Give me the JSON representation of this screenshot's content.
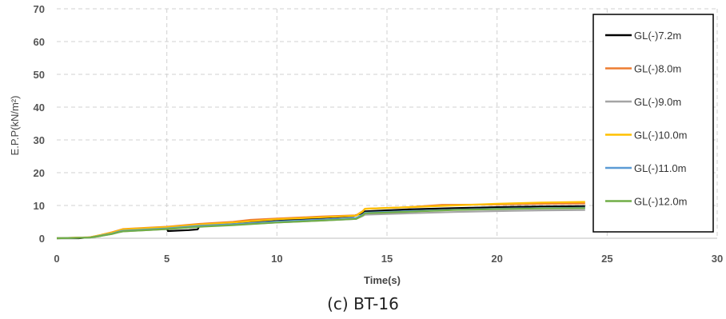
{
  "caption": "(c) BT-16",
  "chart_data": {
    "type": "line",
    "title": "",
    "xlabel": "Time(s)",
    "ylabel": "E.P.P(kN/m²)",
    "xlim": [
      0,
      30
    ],
    "ylim": [
      0,
      70
    ],
    "xticks": [
      "0",
      "5",
      "10",
      "15",
      "20",
      "25",
      "30"
    ],
    "yticks": [
      "0",
      "10",
      "20",
      "30",
      "40",
      "50",
      "60",
      "70"
    ],
    "grid": true,
    "legend_position": "right-inside",
    "series": [
      {
        "name": "GL(-)7.2m",
        "color": "#000000",
        "x": [
          0,
          1,
          1.5,
          2,
          2.5,
          2.8,
          3,
          4,
          5,
          5.05,
          6,
          6.4,
          6.5,
          8,
          10,
          12,
          13.5,
          13.8,
          14,
          16,
          18,
          20,
          22,
          24
        ],
        "y": [
          0,
          0,
          0.3,
          0.8,
          1.5,
          2.1,
          2.3,
          2.6,
          3.0,
          2.2,
          2.5,
          2.7,
          4.0,
          4.5,
          5.3,
          6.2,
          6.8,
          7.5,
          8.2,
          8.8,
          9.2,
          9.5,
          9.7,
          9.8
        ]
      },
      {
        "name": "GL(-)8.0m",
        "color": "#ED7D31",
        "x": [
          0,
          1.5,
          2,
          2.5,
          2.8,
          3,
          5,
          6.5,
          8,
          8.8,
          10,
          12,
          13.6,
          13.9,
          14,
          16,
          17.5,
          20,
          22,
          24
        ],
        "y": [
          0,
          0.3,
          1.0,
          1.8,
          2.4,
          2.8,
          3.5,
          4.4,
          5.0,
          5.6,
          6.0,
          6.6,
          7.0,
          8.3,
          9.0,
          9.5,
          10.2,
          10.3,
          10.5,
          10.6
        ]
      },
      {
        "name": "GL(-)9.0m",
        "color": "#A5A5A5",
        "x": [
          0,
          1.5,
          2,
          2.5,
          2.8,
          3,
          5,
          6.5,
          8,
          10,
          12,
          13.6,
          13.9,
          14,
          16,
          18,
          20,
          22,
          24
        ],
        "y": [
          0,
          0.2,
          0.7,
          1.3,
          1.8,
          2.1,
          2.8,
          3.6,
          4.1,
          4.8,
          5.4,
          5.9,
          6.8,
          7.2,
          7.6,
          8.0,
          8.3,
          8.5,
          8.6
        ]
      },
      {
        "name": "GL(-)10.0m",
        "color": "#FFC000",
        "x": [
          0,
          1.5,
          2,
          2.5,
          2.8,
          3,
          5,
          6.5,
          8,
          10,
          12,
          13.6,
          13.9,
          14,
          16,
          18,
          20,
          22,
          24
        ],
        "y": [
          0,
          0.3,
          1.0,
          1.7,
          2.3,
          2.7,
          3.4,
          4.2,
          4.8,
          5.8,
          6.4,
          6.9,
          8.2,
          9.0,
          9.5,
          10.0,
          10.5,
          10.9,
          11.1
        ]
      },
      {
        "name": "GL(-)11.0m",
        "color": "#5B9BD5",
        "x": [
          0,
          1.5,
          2,
          2.5,
          2.8,
          3,
          5,
          6.5,
          8,
          10,
          12,
          13.6,
          13.9,
          14,
          16,
          18,
          20,
          22,
          24
        ],
        "y": [
          0,
          0.2,
          0.8,
          1.4,
          2.0,
          2.3,
          3.0,
          3.8,
          4.3,
          5.1,
          5.7,
          6.2,
          7.2,
          7.8,
          8.3,
          8.7,
          9.0,
          9.2,
          9.3
        ]
      },
      {
        "name": "GL(-)12.0m",
        "color": "#70AD47",
        "x": [
          0,
          1.5,
          2,
          2.5,
          2.8,
          3,
          5,
          6.5,
          8,
          10,
          12,
          13.6,
          13.9,
          14,
          16,
          18,
          20,
          22,
          24
        ],
        "y": [
          0,
          0.2,
          0.7,
          1.3,
          1.8,
          2.1,
          2.8,
          3.5,
          4.0,
          4.8,
          5.4,
          5.9,
          7.0,
          7.6,
          8.1,
          8.6,
          8.9,
          9.1,
          9.2
        ]
      }
    ]
  }
}
